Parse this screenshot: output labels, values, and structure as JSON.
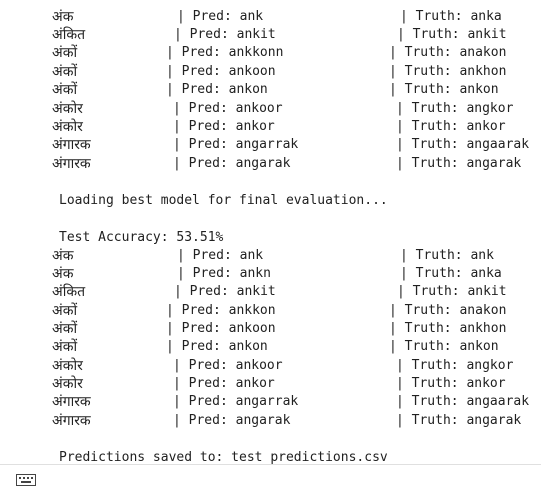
{
  "block1": [
    {
      "word": "अंक",
      "pred": "| Pred: ank",
      "truth": "| Truth: anka"
    },
    {
      "word": "अंकित",
      "pred": "| Pred: ankit",
      "truth": "| Truth: ankit"
    },
    {
      "word": "अंकों",
      "pred": "| Pred: ankkonn",
      "truth": "| Truth: anakon"
    },
    {
      "word": "अंकों",
      "pred": "| Pred: ankoon",
      "truth": "| Truth: ankhon"
    },
    {
      "word": "अंकों",
      "pred": "| Pred: ankon",
      "truth": "| Truth: ankon"
    },
    {
      "word": "अंकोर",
      "pred": "| Pred: ankoor",
      "truth": "| Truth: angkor"
    },
    {
      "word": "अंकोर",
      "pred": "| Pred: ankor",
      "truth": "| Truth: ankor"
    },
    {
      "word": "अंगारक",
      "pred": "| Pred: angarrak",
      "truth": "| Truth: angaarak"
    },
    {
      "word": "अंगारक",
      "pred": "| Pred: angarak",
      "truth": "| Truth: angarak"
    }
  ],
  "loading_message": "Loading best model for final evaluation...",
  "accuracy_message": "Test Accuracy: 53.51%",
  "block2": [
    {
      "word": "अंक",
      "pred": "| Pred: ank",
      "truth": "| Truth: ank"
    },
    {
      "word": "अंक",
      "pred": "| Pred: ankn",
      "truth": "| Truth: anka"
    },
    {
      "word": "अंकित",
      "pred": "| Pred: ankit",
      "truth": "| Truth: ankit"
    },
    {
      "word": "अंकों",
      "pred": "| Pred: ankkon",
      "truth": "| Truth: anakon"
    },
    {
      "word": "अंकों",
      "pred": "| Pred: ankoon",
      "truth": "| Truth: ankhon"
    },
    {
      "word": "अंकों",
      "pred": "| Pred: ankon",
      "truth": "| Truth: ankon"
    },
    {
      "word": "अंकोर",
      "pred": "| Pred: ankoor",
      "truth": "| Truth: angkor"
    },
    {
      "word": "अंकोर",
      "pred": "| Pred: ankor",
      "truth": "| Truth: ankor"
    },
    {
      "word": "अंगारक",
      "pred": "| Pred: angarrak",
      "truth": "| Truth: angaarak"
    },
    {
      "word": "अंगारक",
      "pred": "| Pred: angarak",
      "truth": "| Truth: angarak"
    }
  ],
  "saved_message": "Predictions saved to: test predictions.csv",
  "icons": {
    "keyboard": "keyboard-icon"
  },
  "colors": {
    "text": "#212121",
    "background": "#ffffff"
  }
}
